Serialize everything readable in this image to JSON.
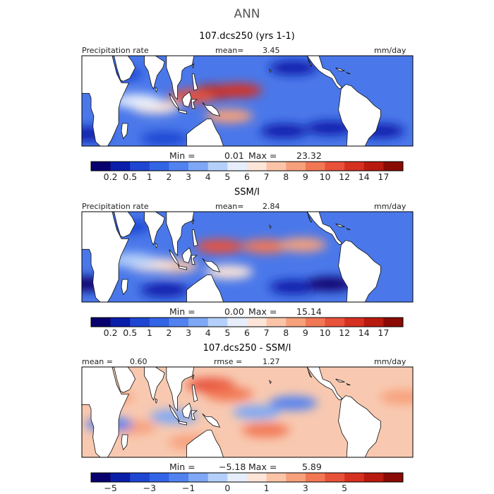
{
  "figure": {
    "title": "ANN"
  },
  "colors": {
    "scale": [
      "#08006d",
      "#0a1eaa",
      "#1e46d2",
      "#3264e6",
      "#5282f0",
      "#7ea8f5",
      "#b4d0fa",
      "#e6eefc",
      "#fde5d8",
      "#fbc4a8",
      "#f7a07c",
      "#f27754",
      "#e8513a",
      "#d63020",
      "#b81a0f",
      "#8a0a05"
    ]
  },
  "chart_data": [
    {
      "type": "heatmap",
      "title": "107.dcs250 (yrs 1-1)",
      "variable_label": "Precipitation rate",
      "stat_label": "mean=",
      "stat_value": "3.45",
      "units": "mm/day",
      "min_label": "Min =",
      "min_value": "0.01",
      "max_label": "Max =",
      "max_value": "23.32",
      "colorbar_ticks": [
        "0.2",
        "0.5",
        "1",
        "2",
        "3",
        "4",
        "5",
        "6",
        "7",
        "8",
        "9",
        "10",
        "12",
        "14",
        "17"
      ],
      "lon_range": [
        0,
        360
      ],
      "lat_range": [
        -30,
        30
      ],
      "features": [
        {
          "lon": 145,
          "lat": 6,
          "value": 15
        },
        {
          "lon": 170,
          "lat": 7,
          "value": 13
        },
        {
          "lon": 120,
          "lat": 3,
          "value": 11
        },
        {
          "lon": 160,
          "lat": -10,
          "value": 9
        },
        {
          "lon": 80,
          "lat": -4,
          "value": 7
        },
        {
          "lon": 60,
          "lat": 0,
          "value": 6
        },
        {
          "lon": 220,
          "lat": -20,
          "value": 0.5
        },
        {
          "lon": 270,
          "lat": -18,
          "value": 0.3
        },
        {
          "lon": 5,
          "lat": -22,
          "value": 0.3
        },
        {
          "lon": 90,
          "lat": -25,
          "value": 1
        },
        {
          "lon": 230,
          "lat": 22,
          "value": 0.5
        },
        {
          "lon": 40,
          "lat": 18,
          "value": 1
        },
        {
          "lon": 325,
          "lat": -20,
          "value": 0.5
        }
      ]
    },
    {
      "type": "heatmap",
      "title": "SSM/I",
      "variable_label": "Precipitation rate",
      "stat_label": "mean=",
      "stat_value": "2.84",
      "units": "mm/day",
      "min_label": "Min =",
      "min_value": "0.00",
      "max_label": "Max =",
      "max_value": "15.14",
      "colorbar_ticks": [
        "0.2",
        "0.5",
        "1",
        "2",
        "3",
        "4",
        "5",
        "6",
        "7",
        "8",
        "9",
        "10",
        "12",
        "14",
        "17"
      ],
      "lon_range": [
        0,
        360
      ],
      "lat_range": [
        -30,
        30
      ],
      "features": [
        {
          "lon": 150,
          "lat": 7,
          "value": 11
        },
        {
          "lon": 200,
          "lat": 7,
          "value": 10
        },
        {
          "lon": 240,
          "lat": 8,
          "value": 9
        },
        {
          "lon": 160,
          "lat": -10,
          "value": 7
        },
        {
          "lon": 100,
          "lat": -6,
          "value": 8
        },
        {
          "lon": 75,
          "lat": -5,
          "value": 7
        },
        {
          "lon": 55,
          "lat": -2,
          "value": 5
        },
        {
          "lon": 5,
          "lat": -18,
          "value": 0.2
        },
        {
          "lon": 90,
          "lat": -22,
          "value": 0.4
        },
        {
          "lon": 230,
          "lat": -20,
          "value": 0.4
        },
        {
          "lon": 270,
          "lat": -18,
          "value": 0.2
        },
        {
          "lon": 50,
          "lat": 20,
          "value": 1
        }
      ]
    },
    {
      "type": "heatmap",
      "title": "107.dcs250 - SSM/I",
      "stat_label": "mean =",
      "stat_value": "0.60",
      "rmse_label": "rmse =",
      "rmse_value": "1.27",
      "units": "mm/day",
      "min_label": "Min =",
      "min_value": "−5.18",
      "max_label": "Max =",
      "max_value": "5.89",
      "colorbar_ticks": [
        "−5",
        "−3",
        "−1",
        "0",
        "1",
        "3",
        "5"
      ],
      "lon_range": [
        0,
        360
      ],
      "lat_range": [
        -30,
        30
      ],
      "features": [
        {
          "lon": 140,
          "lat": 18,
          "value": 4
        },
        {
          "lon": 160,
          "lat": 12,
          "value": 3
        },
        {
          "lon": 30,
          "lat": 10,
          "value": 2
        },
        {
          "lon": 55,
          "lat": -10,
          "value": 2
        },
        {
          "lon": 200,
          "lat": -12,
          "value": 3
        },
        {
          "lon": 120,
          "lat": -20,
          "value": 1.5
        },
        {
          "lon": 350,
          "lat": 10,
          "value": 2
        },
        {
          "lon": 230,
          "lat": 6,
          "value": -2
        },
        {
          "lon": 30,
          "lat": -8,
          "value": -2
        },
        {
          "lon": 100,
          "lat": -3,
          "value": -1.5
        },
        {
          "lon": 190,
          "lat": 0,
          "value": -1
        }
      ]
    }
  ]
}
